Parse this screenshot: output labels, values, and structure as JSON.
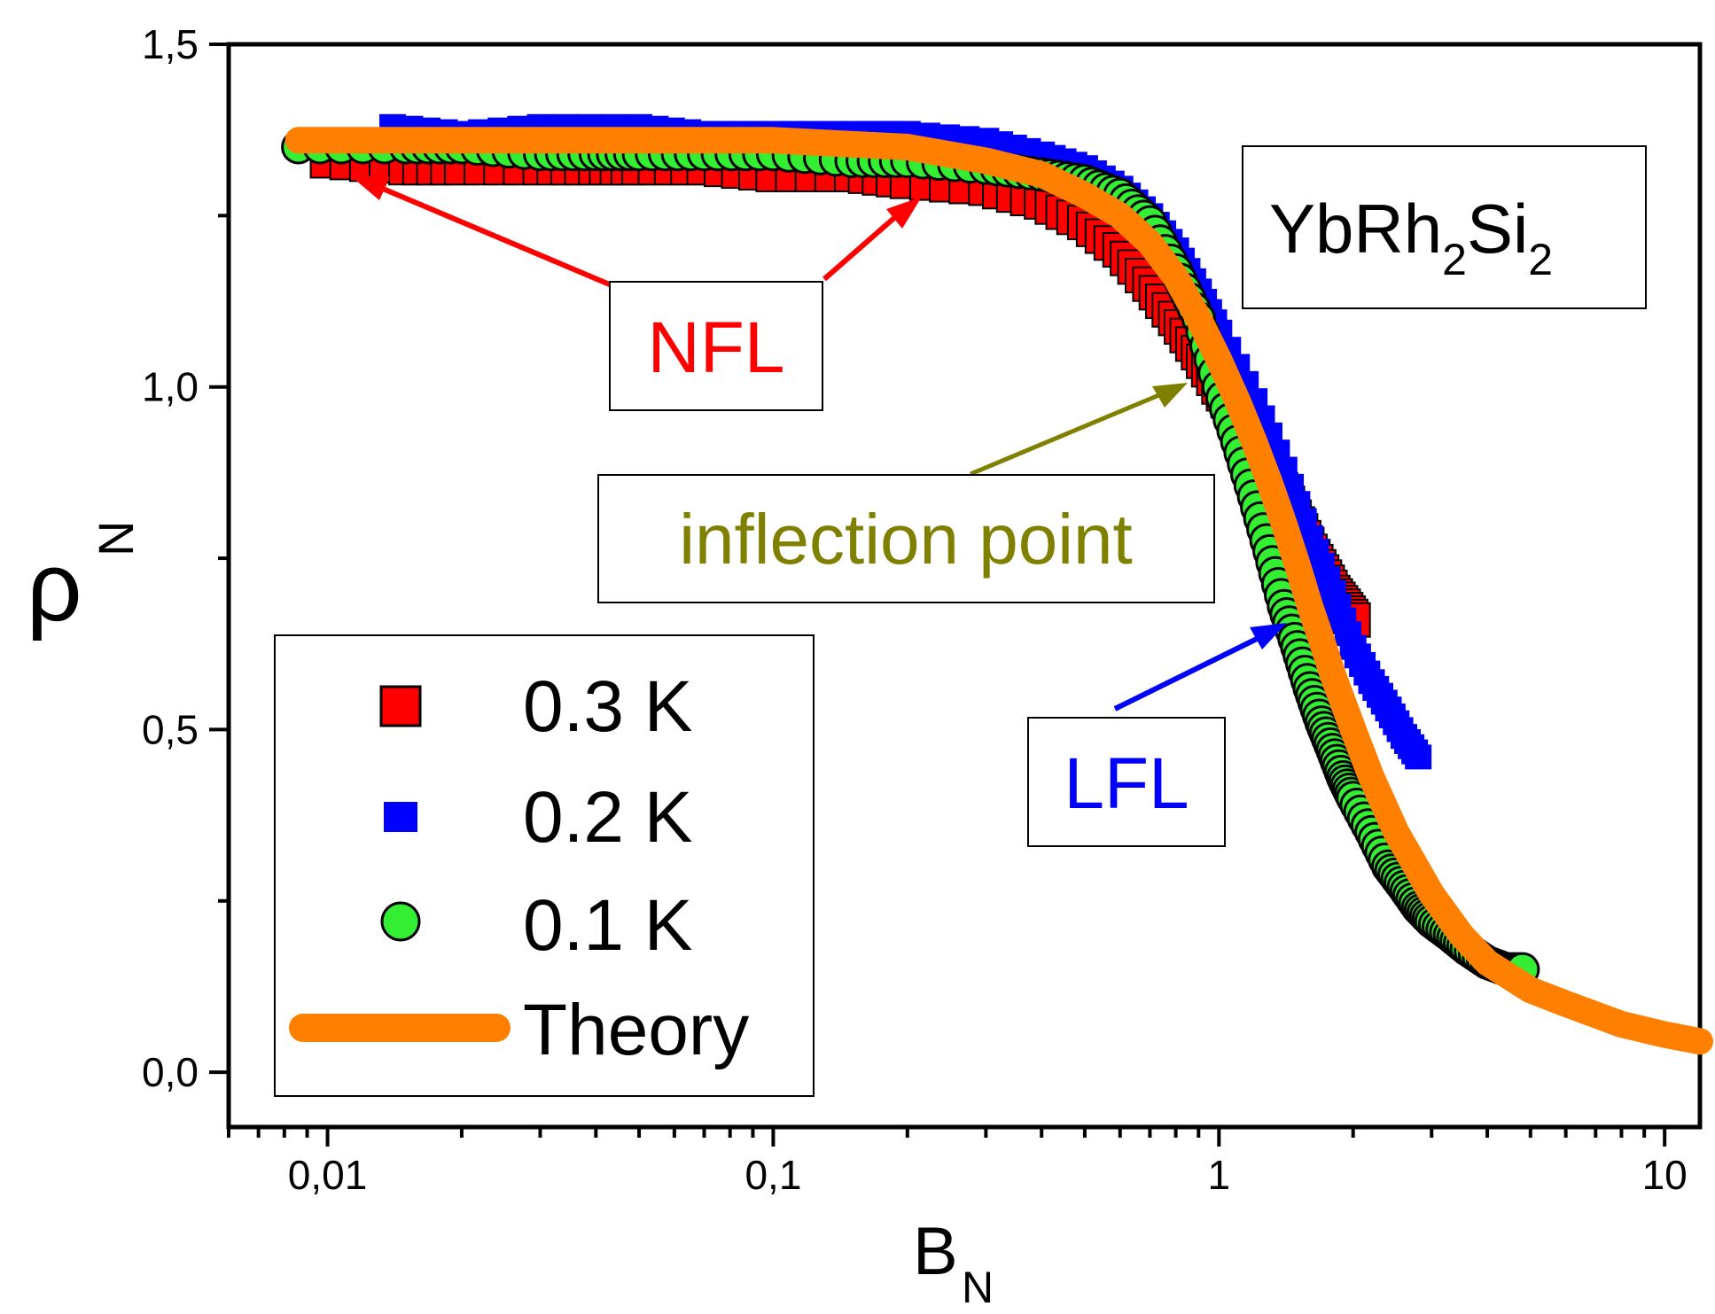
{
  "chart_data": {
    "type": "scatter",
    "title": "",
    "xlabel": "B",
    "xlabel_sub": "N",
    "ylabel": "ρ",
    "ylabel_sub": "N",
    "x_scale": "log",
    "xlim": [
      0.006,
      12
    ],
    "ylim": [
      -0.08,
      1.5
    ],
    "x_ticks": [
      {
        "value": 0.01,
        "label": "0,01"
      },
      {
        "value": 0.1,
        "label": "0,1"
      },
      {
        "value": 1,
        "label": "1"
      },
      {
        "value": 10,
        "label": "10"
      }
    ],
    "y_ticks": [
      {
        "value": 0.0,
        "label": "0,0"
      },
      {
        "value": 0.5,
        "label": "0,5"
      },
      {
        "value": 1.0,
        "label": "1,0"
      },
      {
        "value": 1.5,
        "label": "1,5"
      }
    ],
    "legend": {
      "position": "bottom-left",
      "entries": [
        {
          "label": "0.3 K",
          "marker": "square",
          "color": "#ff0000"
        },
        {
          "label": "0.2 K",
          "marker": "square-small",
          "color": "#0000ff"
        },
        {
          "label": "0.1 K",
          "marker": "circle",
          "color": "#33ee33"
        },
        {
          "label": "Theory",
          "marker": "line",
          "color": "#ff8000"
        }
      ]
    },
    "series": [
      {
        "name": "0.3 K",
        "color": "#ff0000",
        "marker": "square",
        "x": [
          0.01,
          0.015,
          0.02,
          0.03,
          0.04,
          0.05,
          0.07,
          0.1,
          0.15,
          0.2,
          0.3,
          0.4,
          0.5,
          0.6,
          0.7,
          0.8,
          0.9,
          1.0,
          1.1,
          1.2,
          1.3,
          1.4,
          1.5,
          1.6,
          1.7,
          1.8,
          1.9,
          2.0
        ],
        "y": [
          1.33,
          1.32,
          1.32,
          1.32,
          1.32,
          1.32,
          1.32,
          1.31,
          1.31,
          1.3,
          1.29,
          1.27,
          1.24,
          1.2,
          1.15,
          1.1,
          1.05,
          1.0,
          0.96,
          0.92,
          0.88,
          0.84,
          0.8,
          0.76,
          0.73,
          0.7,
          0.68,
          0.66
        ]
      },
      {
        "name": "0.2 K",
        "color": "#0000ff",
        "marker": "square-small",
        "x": [
          0.014,
          0.02,
          0.03,
          0.05,
          0.07,
          0.1,
          0.15,
          0.2,
          0.3,
          0.4,
          0.5,
          0.6,
          0.7,
          0.8,
          0.9,
          1.0,
          1.2,
          1.4,
          1.6,
          1.8,
          2.0,
          2.2,
          2.4,
          2.6,
          2.8
        ],
        "y": [
          1.38,
          1.37,
          1.38,
          1.38,
          1.37,
          1.37,
          1.37,
          1.37,
          1.36,
          1.34,
          1.32,
          1.29,
          1.25,
          1.2,
          1.14,
          1.08,
          0.98,
          0.88,
          0.78,
          0.7,
          0.62,
          0.57,
          0.53,
          0.49,
          0.46
        ]
      },
      {
        "name": "0.1 K",
        "color": "#33ee33",
        "marker": "circle",
        "x": [
          0.0086,
          0.015,
          0.02,
          0.03,
          0.04,
          0.05,
          0.07,
          0.1,
          0.15,
          0.2,
          0.3,
          0.4,
          0.5,
          0.6,
          0.7,
          0.8,
          0.9,
          1.0,
          1.1,
          1.2,
          1.3,
          1.4,
          1.5,
          1.6,
          1.7,
          1.8,
          1.9,
          2.0,
          2.2,
          2.4,
          2.6,
          2.8,
          3.0,
          3.3,
          3.6,
          4.0,
          4.4,
          4.8
        ],
        "y": [
          1.35,
          1.35,
          1.35,
          1.34,
          1.34,
          1.34,
          1.34,
          1.34,
          1.33,
          1.33,
          1.32,
          1.31,
          1.3,
          1.28,
          1.24,
          1.17,
          1.1,
          1.0,
          0.92,
          0.84,
          0.76,
          0.68,
          0.62,
          0.56,
          0.51,
          0.47,
          0.43,
          0.4,
          0.35,
          0.3,
          0.27,
          0.24,
          0.22,
          0.2,
          0.18,
          0.16,
          0.15,
          0.15
        ]
      },
      {
        "name": "Theory",
        "color": "#ff8000",
        "marker": "line",
        "x": [
          0.0086,
          0.02,
          0.05,
          0.1,
          0.2,
          0.3,
          0.4,
          0.5,
          0.6,
          0.7,
          0.8,
          0.9,
          1.0,
          1.1,
          1.2,
          1.3,
          1.4,
          1.5,
          1.6,
          1.7,
          1.8,
          2.0,
          2.2,
          2.5,
          3.0,
          3.5,
          4.0,
          5.0,
          6.0,
          8.0,
          10.0,
          12.0
        ],
        "y": [
          1.36,
          1.36,
          1.36,
          1.36,
          1.35,
          1.33,
          1.31,
          1.28,
          1.25,
          1.21,
          1.16,
          1.1,
          1.04,
          0.98,
          0.92,
          0.86,
          0.8,
          0.74,
          0.68,
          0.63,
          0.58,
          0.5,
          0.43,
          0.35,
          0.26,
          0.2,
          0.16,
          0.12,
          0.1,
          0.07,
          0.055,
          0.045
        ]
      }
    ],
    "annotations": [
      {
        "text": "NFL",
        "color": "#ff0000"
      },
      {
        "text": "inflection point",
        "color": "#808000"
      },
      {
        "text": "LFL",
        "color": "#0000ff"
      },
      {
        "text": "YbRh",
        "sub1": "2",
        "mid": "Si",
        "sub2": "2",
        "color": "#000000"
      }
    ]
  }
}
